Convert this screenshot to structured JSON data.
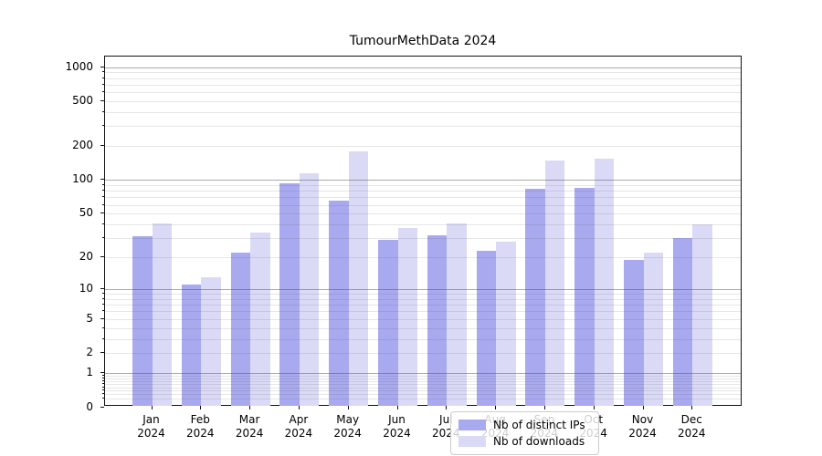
{
  "title": "TumourMethData 2024",
  "chart_data": {
    "type": "bar",
    "title": "TumourMethData 2024",
    "categories": [
      "Jan",
      "Feb",
      "Mar",
      "Apr",
      "May",
      "Jun",
      "Jul",
      "Aug",
      "Sep",
      "Oct",
      "Nov",
      "Dec"
    ],
    "year_label": "2024",
    "series": [
      {
        "name": "Nb of distinct IPs",
        "color": "#a9a9ef",
        "values": [
          31,
          11,
          22,
          94,
          65,
          29,
          32,
          23,
          83,
          85,
          19,
          30
        ]
      },
      {
        "name": "Nb of downloads",
        "color": "#dadaf7",
        "values": [
          41,
          13,
          34,
          114,
          180,
          37,
          41,
          28,
          150,
          155,
          22,
          40
        ]
      }
    ],
    "yscale": "log1p",
    "ylim": [
      0,
      1240
    ],
    "y_ticks": [
      0,
      1,
      2,
      5,
      10,
      20,
      50,
      100,
      200,
      500,
      1000
    ],
    "y_major_gridline_values": [
      1,
      10,
      100,
      1000
    ],
    "grid": "horizontal, major + faint minor (2-9 per decade), drawn over bars",
    "legend_position": "lower center, inside plot",
    "colors": {
      "bar_dark": "#a9a9ef",
      "bar_light": "#dadaf7",
      "axis_frame": "#111111",
      "grid_major": "#bdbdbd",
      "grid_minor": "#e8e8e8",
      "background": "#ffffff"
    }
  }
}
